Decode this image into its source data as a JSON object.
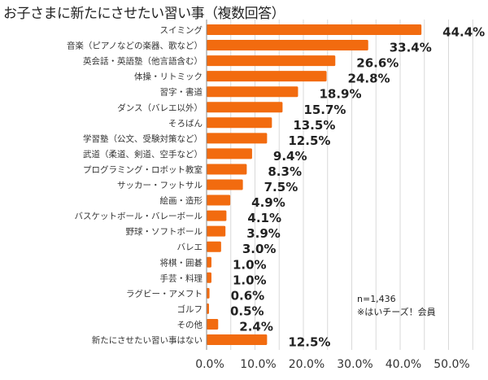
{
  "chart_data": {
    "type": "bar",
    "orientation": "horizontal",
    "title": "お子さまに新たにさせたい習い事（複数回答）",
    "xlabel": "",
    "ylabel": "",
    "xlim": [
      0,
      55
    ],
    "grid": true,
    "categories": [
      "スイミング",
      "音楽（ピアノなどの楽器、歌など）",
      "英会話・英語塾（他言語含む）",
      "体操・リトミック",
      "習字・書道",
      "ダンス（バレエ以外）",
      "そろばん",
      "学習塾（公文、受験対策など）",
      "武道（柔道、剣道、空手など）",
      "プログラミング・ロボット教室",
      "サッカー・フットサル",
      "絵画・造形",
      "バスケットボール・バレーボール",
      "野球・ソフトボール",
      "バレエ",
      "将棋・囲碁",
      "手芸・料理",
      "ラグビー・アメフト",
      "ゴルフ",
      "その他",
      "新たにさせたい習い事はない"
    ],
    "values": [
      44.4,
      33.4,
      26.6,
      24.8,
      18.9,
      15.7,
      13.5,
      12.5,
      9.4,
      8.3,
      7.5,
      4.9,
      4.1,
      3.9,
      3.0,
      1.0,
      1.0,
      0.6,
      0.5,
      2.4,
      12.5
    ],
    "value_labels": [
      "44.4%",
      "33.4%",
      "26.6%",
      "24.8%",
      "18.9%",
      "15.7%",
      "13.5%",
      "12.5%",
      "9.4%",
      "8.3%",
      "7.5%",
      "4.9%",
      "4.1%",
      "3.9%",
      "3.0%",
      "1.0%",
      "1.0%",
      "0.6%",
      "0.5%",
      "2.4%",
      "12.5%"
    ],
    "x_ticks": [
      0,
      10,
      20,
      30,
      40,
      50
    ],
    "x_tick_labels": [
      "0.0%",
      "10.0%",
      "20.0%",
      "30.0%",
      "40.0%",
      "50.0%"
    ],
    "annotations": [
      "n=1,436",
      "※はいチーズ！会員"
    ],
    "colors": {
      "bar": "#f26b0f",
      "grid": "#d9d9d9",
      "axis": "#888888"
    }
  }
}
